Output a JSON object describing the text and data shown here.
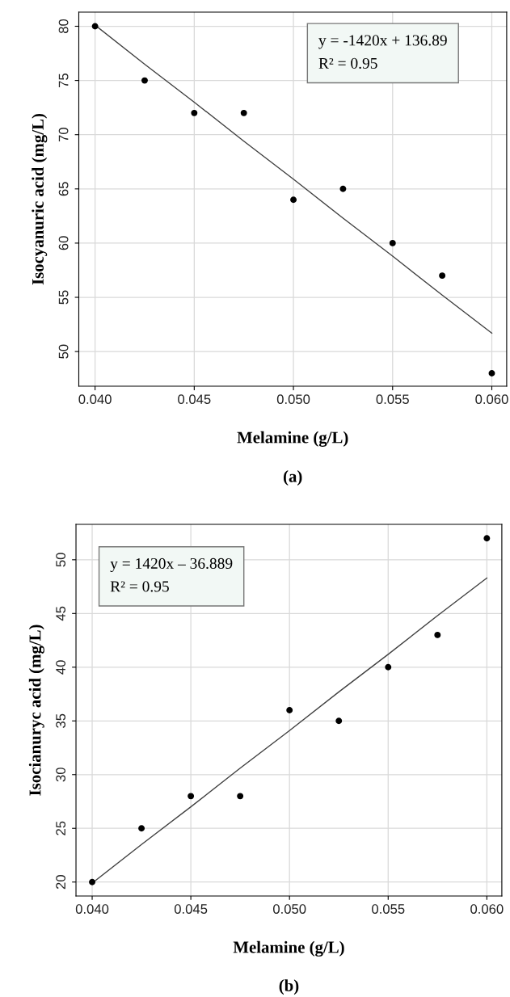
{
  "chart_data": [
    {
      "type": "scatter",
      "xlabel": "Melamine (g/L)",
      "ylabel": "Isocyanuric acid (mg/L)",
      "x": [
        0.04,
        0.0425,
        0.045,
        0.0475,
        0.05,
        0.0525,
        0.055,
        0.0575,
        0.06
      ],
      "series": [
        {
          "color": "#000000",
          "marker": "circle",
          "values": [
            80,
            75,
            72,
            72,
            64,
            65,
            60,
            57,
            48
          ]
        },
        {
          "type": "line",
          "color": "#404040",
          "marker": "none",
          "values": [
            80.1,
            76.5,
            73.0,
            69.4,
            65.9,
            62.3,
            58.8,
            55.2,
            51.7
          ]
        }
      ],
      "xlim": [
        0.03918,
        0.06075
      ],
      "ylim": [
        46.8,
        81.3
      ],
      "xticks": [
        {
          "value": 0.04,
          "label": "0.040"
        },
        {
          "value": 0.045,
          "label": "0.045"
        },
        {
          "value": 0.05,
          "label": "0.050"
        },
        {
          "value": 0.055,
          "label": "0.055"
        },
        {
          "value": 0.06,
          "label": "0.060"
        }
      ],
      "yticks": [
        50,
        55,
        60,
        65,
        70,
        75,
        80
      ],
      "grid": true,
      "annotations": [
        "y = -1420x + 136.89",
        "R² = 0.95",
        "(a)"
      ]
    },
    {
      "type": "scatter",
      "xlabel": "Melamine (g/L)",
      "ylabel": "Isocianuryc acid (mg/L)",
      "x": [
        0.04,
        0.0425,
        0.045,
        0.0475,
        0.05,
        0.0525,
        0.055,
        0.0575,
        0.06
      ],
      "series": [
        {
          "color": "#000000",
          "marker": "circle",
          "values": [
            20,
            25,
            28,
            28,
            36,
            35,
            40,
            43,
            52
          ]
        },
        {
          "type": "line",
          "color": "#404040",
          "marker": "none",
          "values": [
            19.9,
            23.5,
            27.0,
            30.6,
            34.1,
            37.7,
            41.2,
            44.8,
            48.3
          ]
        }
      ],
      "xlim": [
        0.03918,
        0.06076
      ],
      "ylim": [
        18.7,
        53.3
      ],
      "xticks": [
        {
          "value": 0.04,
          "label": "0.040"
        },
        {
          "value": 0.045,
          "label": "0.045"
        },
        {
          "value": 0.05,
          "label": "0.050"
        },
        {
          "value": 0.055,
          "label": "0.055"
        },
        {
          "value": 0.06,
          "label": "0.060"
        }
      ],
      "yticks": [
        20,
        25,
        30,
        35,
        40,
        45,
        50
      ],
      "grid": true,
      "annotations": [
        "y = 1420x – 36.889",
        "R² = 0.95",
        "(b)"
      ]
    }
  ]
}
